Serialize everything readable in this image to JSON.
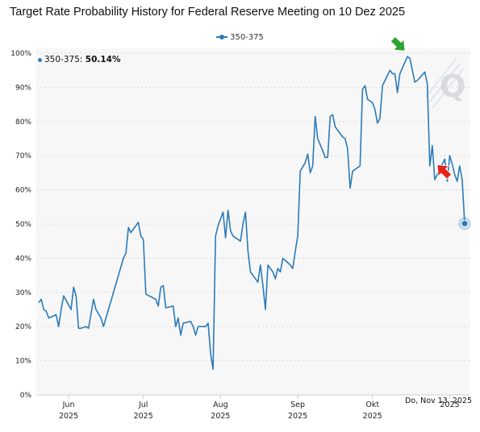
{
  "title": "Target Rate Probability History for Federal Reserve Meeting on 10 Dez 2025",
  "legend": {
    "label": "350-375"
  },
  "tooltip": {
    "series": "350-375:",
    "value": "50.14%"
  },
  "date_flag": "Do, Nov 13, 2025",
  "colors": {
    "line": "#2b7bb9",
    "plot_bg": "#f7f7f7",
    "grid": "#d9d9d9",
    "arrow_up": "#e8231d",
    "arrow_down": "#2fa32f"
  },
  "chart_data": {
    "type": "line",
    "title": "Target Rate Probability History for Federal Reserve Meeting on 10 Dez 2025",
    "x_range": [
      0,
      167
    ],
    "ylim": [
      0,
      100
    ],
    "yticks": [
      0,
      10,
      20,
      30,
      40,
      50,
      60,
      70,
      80,
      90,
      100
    ],
    "ytick_labels": [
      "0%",
      "10%",
      "20%",
      "30%",
      "40%",
      "50%",
      "60%",
      "70%",
      "80%",
      "90%",
      "100%"
    ],
    "xticks": [
      {
        "x": 12,
        "month": "Jun",
        "year": "2025"
      },
      {
        "x": 42,
        "month": "Jul",
        "year": "2025"
      },
      {
        "x": 73,
        "month": "Aug",
        "year": "2025"
      },
      {
        "x": 104,
        "month": "Sep",
        "year": "2025"
      },
      {
        "x": 134,
        "month": "Okt",
        "year": "2025"
      },
      {
        "x": 165,
        "month": "2025",
        "year": ""
      }
    ],
    "grid": true,
    "series": [
      {
        "name": "350-375",
        "points": [
          [
            0,
            27
          ],
          [
            1,
            28
          ],
          [
            2,
            25
          ],
          [
            3,
            24.5
          ],
          [
            4,
            22.5
          ],
          [
            7,
            23.5
          ],
          [
            8,
            20
          ],
          [
            9,
            25
          ],
          [
            10,
            29
          ],
          [
            13,
            25
          ],
          [
            14,
            31.5
          ],
          [
            15,
            29
          ],
          [
            16,
            19.5
          ],
          [
            17,
            19.5
          ],
          [
            19,
            20
          ],
          [
            20,
            19.5
          ],
          [
            22,
            28
          ],
          [
            23,
            25
          ],
          [
            25,
            22.5
          ],
          [
            26,
            20
          ],
          [
            32,
            35
          ],
          [
            34,
            40
          ],
          [
            35,
            41.5
          ],
          [
            36,
            49
          ],
          [
            37,
            47.5
          ],
          [
            39,
            49.5
          ],
          [
            40,
            50.5
          ],
          [
            41,
            46.5
          ],
          [
            42,
            45.5
          ],
          [
            43,
            29.5
          ],
          [
            47,
            28
          ],
          [
            48,
            26
          ],
          [
            49,
            31.5
          ],
          [
            50,
            32
          ],
          [
            51,
            25.5
          ],
          [
            54,
            26
          ],
          [
            55,
            20
          ],
          [
            56,
            22.5
          ],
          [
            57,
            17.5
          ],
          [
            58,
            21
          ],
          [
            61,
            21.5
          ],
          [
            62,
            20
          ],
          [
            63,
            17.5
          ],
          [
            64,
            20
          ],
          [
            67,
            20
          ],
          [
            68,
            21
          ],
          [
            69,
            12
          ],
          [
            70,
            7.5
          ],
          [
            71,
            46.5
          ],
          [
            72,
            49.5
          ],
          [
            74,
            53.5
          ],
          [
            75,
            46
          ],
          [
            76,
            54
          ],
          [
            77,
            48
          ],
          [
            78,
            46.5
          ],
          [
            81,
            45
          ],
          [
            82,
            50
          ],
          [
            83,
            53.5
          ],
          [
            84,
            42
          ],
          [
            85,
            36
          ],
          [
            87,
            34
          ],
          [
            88,
            33
          ],
          [
            89,
            38
          ],
          [
            90,
            32
          ],
          [
            91,
            25
          ],
          [
            92,
            38
          ],
          [
            94,
            36
          ],
          [
            95,
            34
          ],
          [
            96,
            37
          ],
          [
            97,
            36
          ],
          [
            98,
            40
          ],
          [
            101,
            38
          ],
          [
            102,
            37
          ],
          [
            103,
            42
          ],
          [
            104,
            46.5
          ],
          [
            105,
            65.5
          ],
          [
            107,
            68
          ],
          [
            108,
            70.5
          ],
          [
            109,
            65
          ],
          [
            110,
            67
          ],
          [
            111,
            81.5
          ],
          [
            112,
            75
          ],
          [
            114,
            71.5
          ],
          [
            115,
            69.5
          ],
          [
            116,
            69.5
          ],
          [
            117,
            81.5
          ],
          [
            118,
            82
          ],
          [
            119,
            78.5
          ],
          [
            121,
            76.5
          ],
          [
            122,
            75.5
          ],
          [
            123,
            75
          ],
          [
            124,
            72
          ],
          [
            125,
            60.5
          ],
          [
            126,
            65.5
          ],
          [
            128,
            66.5
          ],
          [
            129,
            67
          ],
          [
            130,
            89.5
          ],
          [
            131,
            90.5
          ],
          [
            132,
            86.5
          ],
          [
            134,
            85.5
          ],
          [
            135,
            83.5
          ],
          [
            136,
            79.5
          ],
          [
            137,
            81
          ],
          [
            138,
            90.5
          ],
          [
            139,
            92
          ],
          [
            141,
            95
          ],
          [
            142,
            94
          ],
          [
            143,
            94
          ],
          [
            144,
            88.5
          ],
          [
            145,
            94
          ],
          [
            148,
            99
          ],
          [
            149,
            98.5
          ],
          [
            151,
            91.5
          ],
          [
            152,
            92
          ],
          [
            155,
            94.5
          ],
          [
            156,
            91
          ],
          [
            157,
            67
          ],
          [
            158,
            73
          ],
          [
            159,
            63
          ],
          [
            163,
            69
          ],
          [
            164,
            62.5
          ],
          [
            165,
            70
          ],
          [
            166,
            67.5
          ],
          [
            167,
            64.5
          ],
          [
            168,
            62.5
          ],
          [
            169,
            67
          ],
          [
            170,
            63
          ],
          [
            171,
            50.14
          ]
        ]
      }
    ],
    "annotations": [
      {
        "type": "arrow-down",
        "color": "green",
        "x": 144.5,
        "y": 102.5
      },
      {
        "type": "arrow-up",
        "color": "red",
        "x": 162.5,
        "y": 65.5
      }
    ]
  }
}
